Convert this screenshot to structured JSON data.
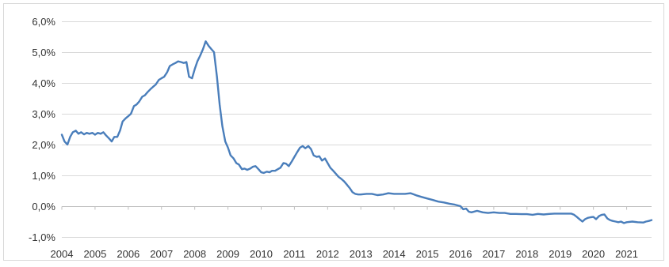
{
  "chart_data": {
    "type": "line",
    "title": "",
    "xlabel": "",
    "ylabel": "",
    "grid": true,
    "legend": "none",
    "xlim": [
      2004.0,
      2021.75
    ],
    "ylim": [
      -1.0,
      6.0
    ],
    "y_ticks": [
      {
        "value": 6.0,
        "label": "6,0%"
      },
      {
        "value": 5.0,
        "label": "5,0%"
      },
      {
        "value": 4.0,
        "label": "4,0%"
      },
      {
        "value": 3.0,
        "label": "3,0%"
      },
      {
        "value": 2.0,
        "label": "2,0%"
      },
      {
        "value": 1.0,
        "label": "1,0%"
      },
      {
        "value": 0.0,
        "label": "0,0%"
      },
      {
        "value": -1.0,
        "label": "-1,0%"
      }
    ],
    "x_ticks": [
      {
        "value": 2004,
        "label": "2004"
      },
      {
        "value": 2005,
        "label": "2005"
      },
      {
        "value": 2006,
        "label": "2006"
      },
      {
        "value": 2007,
        "label": "2007"
      },
      {
        "value": 2008,
        "label": "2008"
      },
      {
        "value": 2009,
        "label": "2009"
      },
      {
        "value": 2010,
        "label": "2010"
      },
      {
        "value": 2011,
        "label": "2011"
      },
      {
        "value": 2012,
        "label": "2012"
      },
      {
        "value": 2013,
        "label": "2013"
      },
      {
        "value": 2014,
        "label": "2014"
      },
      {
        "value": 2015,
        "label": "2015"
      },
      {
        "value": 2016,
        "label": "2016"
      },
      {
        "value": 2017,
        "label": "2017"
      },
      {
        "value": 2018,
        "label": "2018"
      },
      {
        "value": 2019,
        "label": "2019"
      },
      {
        "value": 2020,
        "label": "2020"
      },
      {
        "value": 2021,
        "label": "2021"
      }
    ],
    "series": [
      {
        "color": "#4a7ebb",
        "points": [
          [
            2004.0,
            2.32
          ],
          [
            2004.08,
            2.1
          ],
          [
            2004.17,
            2.0
          ],
          [
            2004.25,
            2.25
          ],
          [
            2004.33,
            2.4
          ],
          [
            2004.42,
            2.45
          ],
          [
            2004.5,
            2.35
          ],
          [
            2004.58,
            2.4
          ],
          [
            2004.67,
            2.33
          ],
          [
            2004.75,
            2.38
          ],
          [
            2004.83,
            2.35
          ],
          [
            2004.92,
            2.38
          ],
          [
            2005.0,
            2.32
          ],
          [
            2005.08,
            2.38
          ],
          [
            2005.17,
            2.35
          ],
          [
            2005.25,
            2.4
          ],
          [
            2005.33,
            2.3
          ],
          [
            2005.42,
            2.2
          ],
          [
            2005.5,
            2.1
          ],
          [
            2005.58,
            2.25
          ],
          [
            2005.67,
            2.25
          ],
          [
            2005.75,
            2.45
          ],
          [
            2005.83,
            2.75
          ],
          [
            2005.92,
            2.85
          ],
          [
            2006.0,
            2.92
          ],
          [
            2006.08,
            3.0
          ],
          [
            2006.17,
            3.25
          ],
          [
            2006.25,
            3.3
          ],
          [
            2006.33,
            3.4
          ],
          [
            2006.42,
            3.55
          ],
          [
            2006.5,
            3.6
          ],
          [
            2006.58,
            3.7
          ],
          [
            2006.67,
            3.8
          ],
          [
            2006.75,
            3.88
          ],
          [
            2006.83,
            3.95
          ],
          [
            2006.92,
            4.1
          ],
          [
            2007.0,
            4.15
          ],
          [
            2007.08,
            4.2
          ],
          [
            2007.17,
            4.35
          ],
          [
            2007.25,
            4.55
          ],
          [
            2007.33,
            4.6
          ],
          [
            2007.42,
            4.65
          ],
          [
            2007.5,
            4.7
          ],
          [
            2007.58,
            4.68
          ],
          [
            2007.67,
            4.65
          ],
          [
            2007.75,
            4.68
          ],
          [
            2007.83,
            4.2
          ],
          [
            2007.92,
            4.15
          ],
          [
            2008.0,
            4.45
          ],
          [
            2008.08,
            4.7
          ],
          [
            2008.17,
            4.9
          ],
          [
            2008.25,
            5.1
          ],
          [
            2008.33,
            5.35
          ],
          [
            2008.42,
            5.2
          ],
          [
            2008.5,
            5.1
          ],
          [
            2008.58,
            5.0
          ],
          [
            2008.67,
            4.2
          ],
          [
            2008.75,
            3.3
          ],
          [
            2008.83,
            2.6
          ],
          [
            2008.92,
            2.1
          ],
          [
            2009.0,
            1.9
          ],
          [
            2009.08,
            1.65
          ],
          [
            2009.17,
            1.55
          ],
          [
            2009.25,
            1.4
          ],
          [
            2009.33,
            1.35
          ],
          [
            2009.42,
            1.2
          ],
          [
            2009.5,
            1.22
          ],
          [
            2009.58,
            1.18
          ],
          [
            2009.67,
            1.22
          ],
          [
            2009.75,
            1.28
          ],
          [
            2009.83,
            1.3
          ],
          [
            2009.92,
            1.2
          ],
          [
            2010.0,
            1.1
          ],
          [
            2010.08,
            1.08
          ],
          [
            2010.17,
            1.12
          ],
          [
            2010.25,
            1.1
          ],
          [
            2010.33,
            1.15
          ],
          [
            2010.42,
            1.15
          ],
          [
            2010.5,
            1.2
          ],
          [
            2010.58,
            1.25
          ],
          [
            2010.67,
            1.4
          ],
          [
            2010.75,
            1.38
          ],
          [
            2010.83,
            1.3
          ],
          [
            2010.92,
            1.45
          ],
          [
            2011.0,
            1.6
          ],
          [
            2011.08,
            1.75
          ],
          [
            2011.17,
            1.9
          ],
          [
            2011.25,
            1.95
          ],
          [
            2011.33,
            1.88
          ],
          [
            2011.42,
            1.95
          ],
          [
            2011.5,
            1.85
          ],
          [
            2011.58,
            1.65
          ],
          [
            2011.67,
            1.6
          ],
          [
            2011.75,
            1.62
          ],
          [
            2011.83,
            1.48
          ],
          [
            2011.92,
            1.55
          ],
          [
            2012.0,
            1.4
          ],
          [
            2012.08,
            1.25
          ],
          [
            2012.17,
            1.15
          ],
          [
            2012.25,
            1.05
          ],
          [
            2012.33,
            0.95
          ],
          [
            2012.42,
            0.88
          ],
          [
            2012.5,
            0.8
          ],
          [
            2012.58,
            0.7
          ],
          [
            2012.67,
            0.58
          ],
          [
            2012.75,
            0.45
          ],
          [
            2012.83,
            0.4
          ],
          [
            2012.92,
            0.38
          ],
          [
            2013.0,
            0.38
          ],
          [
            2013.17,
            0.4
          ],
          [
            2013.33,
            0.4
          ],
          [
            2013.5,
            0.36
          ],
          [
            2013.67,
            0.38
          ],
          [
            2013.83,
            0.42
          ],
          [
            2014.0,
            0.4
          ],
          [
            2014.17,
            0.4
          ],
          [
            2014.33,
            0.4
          ],
          [
            2014.5,
            0.42
          ],
          [
            2014.67,
            0.35
          ],
          [
            2014.83,
            0.3
          ],
          [
            2015.0,
            0.25
          ],
          [
            2015.17,
            0.2
          ],
          [
            2015.33,
            0.15
          ],
          [
            2015.5,
            0.12
          ],
          [
            2015.67,
            0.08
          ],
          [
            2015.83,
            0.05
          ],
          [
            2016.0,
            0.0
          ],
          [
            2016.08,
            -0.1
          ],
          [
            2016.17,
            -0.08
          ],
          [
            2016.25,
            -0.18
          ],
          [
            2016.33,
            -0.2
          ],
          [
            2016.5,
            -0.15
          ],
          [
            2016.67,
            -0.2
          ],
          [
            2016.83,
            -0.22
          ],
          [
            2017.0,
            -0.2
          ],
          [
            2017.17,
            -0.22
          ],
          [
            2017.33,
            -0.22
          ],
          [
            2017.5,
            -0.25
          ],
          [
            2017.67,
            -0.25
          ],
          [
            2017.83,
            -0.26
          ],
          [
            2018.0,
            -0.26
          ],
          [
            2018.17,
            -0.28
          ],
          [
            2018.33,
            -0.25
          ],
          [
            2018.5,
            -0.27
          ],
          [
            2018.67,
            -0.25
          ],
          [
            2018.83,
            -0.24
          ],
          [
            2019.0,
            -0.24
          ],
          [
            2019.17,
            -0.24
          ],
          [
            2019.33,
            -0.24
          ],
          [
            2019.42,
            -0.28
          ],
          [
            2019.5,
            -0.35
          ],
          [
            2019.58,
            -0.42
          ],
          [
            2019.67,
            -0.5
          ],
          [
            2019.75,
            -0.42
          ],
          [
            2019.83,
            -0.38
          ],
          [
            2019.92,
            -0.36
          ],
          [
            2020.0,
            -0.35
          ],
          [
            2020.08,
            -0.42
          ],
          [
            2020.17,
            -0.32
          ],
          [
            2020.25,
            -0.28
          ],
          [
            2020.33,
            -0.27
          ],
          [
            2020.42,
            -0.4
          ],
          [
            2020.5,
            -0.45
          ],
          [
            2020.58,
            -0.48
          ],
          [
            2020.67,
            -0.5
          ],
          [
            2020.75,
            -0.52
          ],
          [
            2020.83,
            -0.5
          ],
          [
            2020.92,
            -0.55
          ],
          [
            2021.0,
            -0.52
          ],
          [
            2021.17,
            -0.5
          ],
          [
            2021.33,
            -0.52
          ],
          [
            2021.5,
            -0.53
          ],
          [
            2021.58,
            -0.5
          ],
          [
            2021.67,
            -0.48
          ],
          [
            2021.75,
            -0.45
          ]
        ]
      }
    ]
  }
}
